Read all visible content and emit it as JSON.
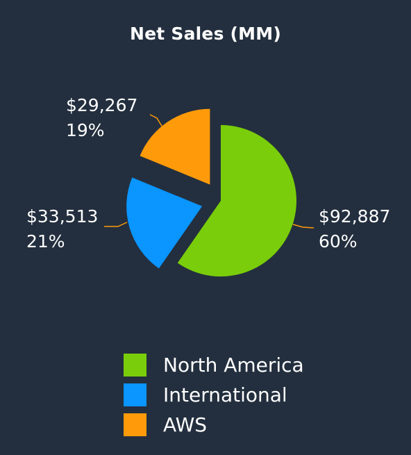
{
  "title": "Net Sales (MM)",
  "chart_data": {
    "type": "pie",
    "title": "Net Sales (MM)",
    "slices": [
      {
        "name": "North America",
        "value": 92887,
        "value_label": "$92,887",
        "percent_label": "60%",
        "color": "#7acd0a",
        "exploded": false
      },
      {
        "name": "International",
        "value": 33513,
        "value_label": "$33,513",
        "percent_label": "21%",
        "color": "#0a95ff",
        "exploded": true
      },
      {
        "name": "AWS",
        "value": 29267,
        "value_label": "$29,267",
        "percent_label": "19%",
        "color": "#ff9b0a",
        "exploded": true
      }
    ],
    "legend_position": "bottom",
    "leader_line_color": "#ff9b0a"
  },
  "legend": [
    {
      "label": "North America",
      "color": "#7acd0a"
    },
    {
      "label": "International",
      "color": "#0a95ff"
    },
    {
      "label": "AWS",
      "color": "#ff9b0a"
    }
  ]
}
